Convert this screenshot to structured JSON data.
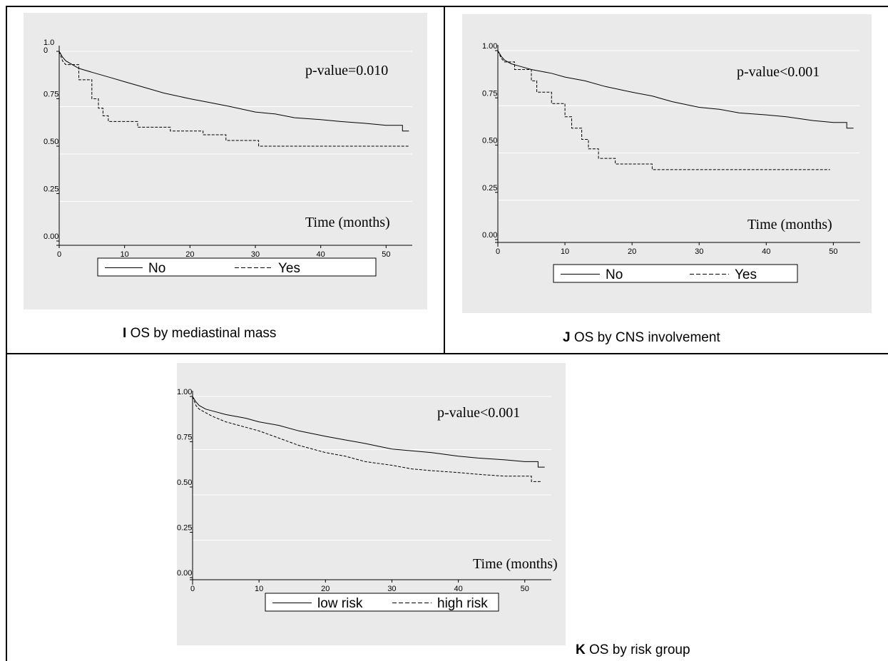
{
  "captions": [
    {
      "letter": "I",
      "text": "OS by mediastinal mass"
    },
    {
      "letter": "J",
      "text": "OS by CNS involvement"
    },
    {
      "letter": "K",
      "text": "OS by risk group"
    }
  ],
  "colors": {
    "panel_bg": "#eaeaea",
    "grid": "#ffffff",
    "line": "#000000",
    "legend_bg": "#ffffff"
  },
  "chart_data": [
    {
      "type": "line",
      "subtype": "kaplan-meier step",
      "title": "",
      "xlabel": "Time (months)",
      "ylabel": "",
      "annotation": "p-value=0.010",
      "xlim": [
        0,
        54
      ],
      "ylim": [
        0,
        1
      ],
      "xticks": [
        0,
        10,
        20,
        30,
        40,
        50
      ],
      "yticks": [
        0,
        0.25,
        0.5,
        0.75,
        1
      ],
      "ytick_labels": [
        "0.00",
        "0.25",
        "0.50",
        "0.75",
        "1.0\n0"
      ],
      "grid": true,
      "legend_position": "bottom",
      "series": [
        {
          "name": "No",
          "style": "solid",
          "points": [
            [
              0,
              1.0
            ],
            [
              0.5,
              0.97
            ],
            [
              1,
              0.95
            ],
            [
              2,
              0.93
            ],
            [
              3,
              0.91
            ],
            [
              5,
              0.89
            ],
            [
              8,
              0.86
            ],
            [
              10,
              0.84
            ],
            [
              13,
              0.81
            ],
            [
              16,
              0.78
            ],
            [
              20,
              0.75
            ],
            [
              23,
              0.73
            ],
            [
              26,
              0.71
            ],
            [
              30,
              0.68
            ],
            [
              33,
              0.67
            ],
            [
              36,
              0.65
            ],
            [
              40,
              0.64
            ],
            [
              43,
              0.63
            ],
            [
              47,
              0.62
            ],
            [
              50,
              0.61
            ],
            [
              52.5,
              0.61
            ],
            [
              52.5,
              0.58
            ],
            [
              53.5,
              0.58
            ]
          ]
        },
        {
          "name": "Yes",
          "style": "dashed",
          "points": [
            [
              0,
              1.0
            ],
            [
              0.5,
              0.95
            ],
            [
              1,
              0.93
            ],
            [
              3,
              0.93
            ],
            [
              3,
              0.85
            ],
            [
              5,
              0.85
            ],
            [
              5,
              0.75
            ],
            [
              6,
              0.75
            ],
            [
              6,
              0.7
            ],
            [
              6.7,
              0.7
            ],
            [
              6.7,
              0.66
            ],
            [
              7.5,
              0.66
            ],
            [
              7.5,
              0.63
            ],
            [
              12,
              0.63
            ],
            [
              12,
              0.6
            ],
            [
              17,
              0.6
            ],
            [
              17,
              0.58
            ],
            [
              22,
              0.58
            ],
            [
              22,
              0.56
            ],
            [
              25.5,
              0.56
            ],
            [
              25.5,
              0.53
            ],
            [
              30.5,
              0.53
            ],
            [
              30.5,
              0.5
            ],
            [
              53.5,
              0.5
            ]
          ]
        }
      ]
    },
    {
      "type": "line",
      "subtype": "kaplan-meier step",
      "title": "",
      "xlabel": "Time (months)",
      "ylabel": "",
      "annotation": "p-value<0.001",
      "xlim": [
        0,
        54
      ],
      "ylim": [
        0,
        1
      ],
      "xticks": [
        0,
        10,
        20,
        30,
        40,
        50
      ],
      "yticks": [
        0,
        0.25,
        0.5,
        0.75,
        1
      ],
      "ytick_labels": [
        "0.00",
        "0.25",
        "0.50",
        "0.75",
        "1.00"
      ],
      "grid": true,
      "legend_position": "bottom",
      "series": [
        {
          "name": "No",
          "style": "solid",
          "points": [
            [
              0,
              1.0
            ],
            [
              0.5,
              0.97
            ],
            [
              1,
              0.95
            ],
            [
              2,
              0.93
            ],
            [
              3,
              0.92
            ],
            [
              5,
              0.9
            ],
            [
              8,
              0.88
            ],
            [
              10,
              0.86
            ],
            [
              13,
              0.84
            ],
            [
              16,
              0.81
            ],
            [
              20,
              0.78
            ],
            [
              23,
              0.76
            ],
            [
              26,
              0.73
            ],
            [
              30,
              0.7
            ],
            [
              33,
              0.69
            ],
            [
              36,
              0.67
            ],
            [
              40,
              0.66
            ],
            [
              43,
              0.65
            ],
            [
              47,
              0.63
            ],
            [
              50,
              0.62
            ],
            [
              52,
              0.62
            ],
            [
              52,
              0.59
            ],
            [
              53,
              0.59
            ]
          ]
        },
        {
          "name": "Yes",
          "style": "dashed",
          "points": [
            [
              0,
              1.0
            ],
            [
              0.5,
              0.96
            ],
            [
              1,
              0.94
            ],
            [
              2.5,
              0.94
            ],
            [
              2.5,
              0.9
            ],
            [
              5,
              0.9
            ],
            [
              5,
              0.84
            ],
            [
              5.8,
              0.84
            ],
            [
              5.8,
              0.78
            ],
            [
              8,
              0.78
            ],
            [
              8,
              0.72
            ],
            [
              10,
              0.72
            ],
            [
              10,
              0.65
            ],
            [
              11,
              0.65
            ],
            [
              11,
              0.59
            ],
            [
              12.5,
              0.59
            ],
            [
              12.5,
              0.53
            ],
            [
              13.5,
              0.53
            ],
            [
              13.5,
              0.48
            ],
            [
              15,
              0.48
            ],
            [
              15,
              0.43
            ],
            [
              17.5,
              0.43
            ],
            [
              17.5,
              0.4
            ],
            [
              23,
              0.4
            ],
            [
              23,
              0.37
            ],
            [
              49.5,
              0.37
            ]
          ]
        }
      ]
    },
    {
      "type": "line",
      "subtype": "kaplan-meier step",
      "title": "",
      "xlabel": "Time (months)",
      "ylabel": "",
      "annotation": "p-value<0.001",
      "xlim": [
        0,
        54
      ],
      "ylim": [
        0,
        1
      ],
      "xticks": [
        0,
        10,
        20,
        30,
        40,
        50
      ],
      "yticks": [
        0,
        0.25,
        0.5,
        0.75,
        1
      ],
      "ytick_labels": [
        "0.00",
        "0.25",
        "0.50",
        "0.75",
        "1.00"
      ],
      "grid": true,
      "legend_position": "bottom",
      "series": [
        {
          "name": "low risk",
          "style": "solid",
          "points": [
            [
              0,
              1.0
            ],
            [
              0.5,
              0.97
            ],
            [
              1,
              0.95
            ],
            [
              2,
              0.93
            ],
            [
              3,
              0.92
            ],
            [
              5,
              0.9
            ],
            [
              8,
              0.88
            ],
            [
              10,
              0.86
            ],
            [
              13,
              0.84
            ],
            [
              16,
              0.81
            ],
            [
              20,
              0.78
            ],
            [
              23,
              0.76
            ],
            [
              26,
              0.74
            ],
            [
              30,
              0.71
            ],
            [
              33,
              0.7
            ],
            [
              36,
              0.69
            ],
            [
              40,
              0.67
            ],
            [
              43,
              0.66
            ],
            [
              47,
              0.65
            ],
            [
              50,
              0.64
            ],
            [
              52,
              0.64
            ],
            [
              52,
              0.61
            ],
            [
              53,
              0.61
            ]
          ]
        },
        {
          "name": "high risk",
          "style": "dashed",
          "points": [
            [
              0,
              1.0
            ],
            [
              0.5,
              0.95
            ],
            [
              1,
              0.93
            ],
            [
              2,
              0.91
            ],
            [
              3,
              0.89
            ],
            [
              5,
              0.86
            ],
            [
              8,
              0.83
            ],
            [
              10,
              0.81
            ],
            [
              13,
              0.77
            ],
            [
              16,
              0.73
            ],
            [
              20,
              0.69
            ],
            [
              23,
              0.67
            ],
            [
              26,
              0.64
            ],
            [
              30,
              0.62
            ],
            [
              33,
              0.6
            ],
            [
              36,
              0.59
            ],
            [
              40,
              0.58
            ],
            [
              43,
              0.57
            ],
            [
              47,
              0.56
            ],
            [
              50,
              0.56
            ],
            [
              51,
              0.56
            ],
            [
              51,
              0.53
            ],
            [
              52.5,
              0.53
            ]
          ]
        }
      ]
    }
  ]
}
